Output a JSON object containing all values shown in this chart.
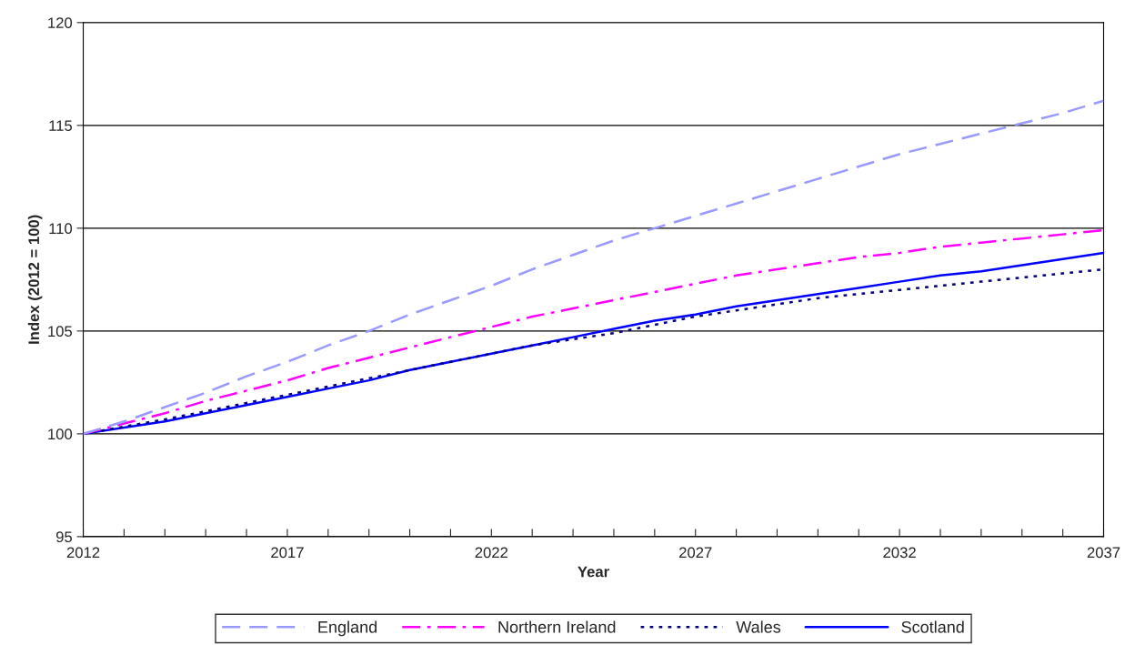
{
  "chart_data": {
    "type": "line",
    "xlabel": "Year",
    "ylabel": "Index (2012 = 100)",
    "x": [
      2012,
      2013,
      2014,
      2015,
      2016,
      2017,
      2018,
      2019,
      2020,
      2021,
      2022,
      2023,
      2024,
      2025,
      2026,
      2027,
      2028,
      2029,
      2030,
      2031,
      2032,
      2033,
      2034,
      2035,
      2036,
      2037
    ],
    "series": [
      {
        "name": "England",
        "color": "#9999ff",
        "line_style": "dashed",
        "values": [
          100,
          100.6,
          101.3,
          102.0,
          102.8,
          103.5,
          104.3,
          105.0,
          105.8,
          106.5,
          107.2,
          108.0,
          108.7,
          109.4,
          110.0,
          110.6,
          111.2,
          111.8,
          112.4,
          113.0,
          113.6,
          114.1,
          114.6,
          115.1,
          115.6,
          116.2
        ]
      },
      {
        "name": "Northern Ireland",
        "color": "#ff00ff",
        "line_style": "dashdot",
        "values": [
          100,
          100.5,
          101.0,
          101.6,
          102.1,
          102.6,
          103.2,
          103.7,
          104.2,
          104.7,
          105.2,
          105.7,
          106.1,
          106.5,
          106.9,
          107.3,
          107.7,
          108.0,
          108.3,
          108.6,
          108.8,
          109.1,
          109.3,
          109.5,
          109.7,
          109.9
        ]
      },
      {
        "name": "Wales",
        "color": "#000080",
        "line_style": "dotted",
        "values": [
          100,
          100.35,
          100.7,
          101.1,
          101.5,
          101.9,
          102.3,
          102.7,
          103.1,
          103.5,
          103.9,
          104.3,
          104.6,
          104.9,
          105.3,
          105.7,
          106.0,
          106.3,
          106.6,
          106.8,
          107.0,
          107.2,
          107.4,
          107.6,
          107.8,
          108.0
        ]
      },
      {
        "name": "Scotland",
        "color": "#0000ff",
        "line_style": "solid",
        "values": [
          100,
          100.3,
          100.6,
          101.0,
          101.4,
          101.8,
          102.2,
          102.6,
          103.1,
          103.5,
          103.9,
          104.3,
          104.7,
          105.1,
          105.5,
          105.8,
          106.2,
          106.5,
          106.8,
          107.1,
          107.4,
          107.7,
          107.9,
          108.2,
          108.5,
          108.8
        ]
      }
    ],
    "xlim": [
      2012,
      2037
    ],
    "xticks": [
      2012,
      {
        "value": 2013,
        "label": null
      },
      {
        "value": 2014,
        "label": null
      },
      {
        "value": 2015,
        "label": null
      },
      {
        "value": 2016,
        "label": null
      },
      2017,
      {
        "value": 2018,
        "label": null
      },
      {
        "value": 2019,
        "label": null
      },
      {
        "value": 2020,
        "label": null
      },
      {
        "value": 2021,
        "label": null
      },
      2022,
      {
        "value": 2023,
        "label": null
      },
      {
        "value": 2024,
        "label": null
      },
      {
        "value": 2025,
        "label": null
      },
      {
        "value": 2026,
        "label": null
      },
      2027,
      {
        "value": 2028,
        "label": null
      },
      {
        "value": 2029,
        "label": null
      },
      {
        "value": 2030,
        "label": null
      },
      {
        "value": 2031,
        "label": null
      },
      2032,
      {
        "value": 2033,
        "label": null
      },
      {
        "value": 2034,
        "label": null
      },
      {
        "value": 2035,
        "label": null
      },
      {
        "value": 2036,
        "label": null
      },
      2037
    ],
    "ylim": [
      95,
      120
    ],
    "yticks": [
      95,
      100,
      105,
      110,
      115,
      120
    ],
    "grid": "y",
    "legend": "bottom",
    "marker": "none"
  }
}
